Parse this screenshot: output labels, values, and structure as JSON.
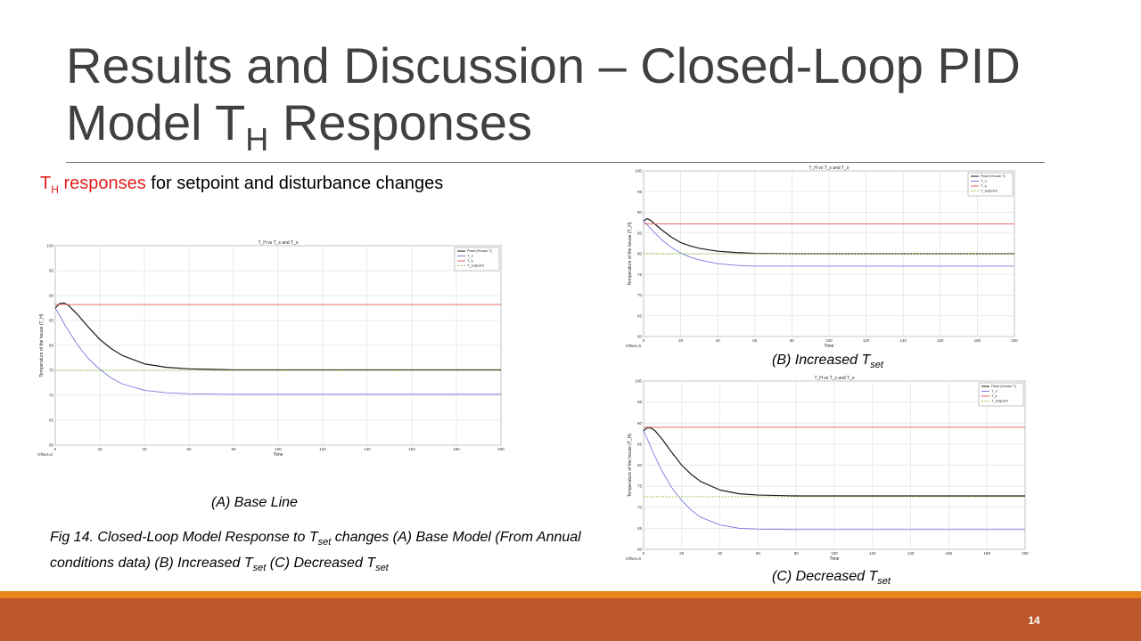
{
  "slide": {
    "title_line1": "Results and Discussion – Closed-Loop PID",
    "title_line2_pre": "Model T",
    "title_line2_sub": "H",
    "title_line2_post": " Responses",
    "subtitle_red_main": "T",
    "subtitle_red_sub": "H",
    "subtitle_red_rest": " responses",
    "subtitle_rest": " for setpoint and disturbance changes",
    "caption_a": "(A) Base Line",
    "caption_b_pre": "(B) Increased T",
    "caption_b_sub": "set",
    "caption_c_pre": "(C) Decreased T",
    "caption_c_sub": "set",
    "fig_caption_p1": "Fig 14. Closed-Loop Model Response to T",
    "fig_caption_s1": "set",
    "fig_caption_p2": " changes (A) Base Model (From Annual conditions data) (B) Increased T",
    "fig_caption_s2": "set",
    "fig_caption_p3": "  (C) Decreased T",
    "fig_caption_s3": "set",
    "page_number": "14"
  },
  "colors": {
    "plant": "#1a1a1a",
    "t_o": "#7a7ae0",
    "t_s": "#e05a5a",
    "setpoint": "#90c040",
    "footer_bar": "#bd582c",
    "footer_accent": "#e8851c"
  },
  "chart_data": [
    {
      "type": "line",
      "title": "T_H vs T_s and T_o",
      "xlabel": "Time",
      "ylabel": "Temperature of the house (T_H)",
      "offset_label": "Offset=0",
      "xlim": [
        0,
        200
      ],
      "ylim": [
        60,
        100
      ],
      "xticks": [
        0,
        20,
        40,
        60,
        80,
        100,
        120,
        140,
        160,
        180,
        200
      ],
      "yticks": [
        60,
        65,
        70,
        75,
        80,
        85,
        90,
        95,
        100
      ],
      "grid": true,
      "legend_position": "top-right",
      "series": [
        {
          "name": "Plant (House T)",
          "x": [
            0,
            2,
            4,
            6,
            10,
            15,
            20,
            25,
            30,
            40,
            50,
            60,
            80,
            100,
            150,
            200
          ],
          "y": [
            87.5,
            88.4,
            88.5,
            88.0,
            86.2,
            83.6,
            81.2,
            79.4,
            78.0,
            76.3,
            75.6,
            75.3,
            75.1,
            75.1,
            75.1,
            75.1
          ]
        },
        {
          "name": "T_o",
          "x": [
            0,
            5,
            10,
            15,
            20,
            25,
            30,
            40,
            50,
            60,
            80,
            100,
            150,
            200
          ],
          "y": [
            87.5,
            83.6,
            80.1,
            77.3,
            75.2,
            73.5,
            72.3,
            71.0,
            70.5,
            70.3,
            70.2,
            70.2,
            70.2,
            70.2
          ]
        },
        {
          "name": "T_s",
          "x": [
            0,
            200
          ],
          "y": [
            88.2,
            88.2
          ]
        },
        {
          "name": "T_setpoint",
          "x": [
            0,
            200
          ],
          "y": [
            75.0,
            75.0
          ]
        }
      ]
    },
    {
      "type": "line",
      "title": "T_H vs T_s and T_o",
      "xlabel": "Time",
      "ylabel": "Temperature of the house (T_H)",
      "offset_label": "Offset=0",
      "xlim": [
        0,
        200
      ],
      "ylim": [
        60,
        100
      ],
      "xticks": [
        0,
        20,
        40,
        60,
        80,
        100,
        120,
        140,
        160,
        180,
        200
      ],
      "yticks": [
        60,
        65,
        70,
        75,
        80,
        85,
        90,
        95,
        100
      ],
      "grid": true,
      "legend_position": "top-right",
      "series": [
        {
          "name": "Plant (House T)",
          "x": [
            0,
            2,
            4,
            6,
            10,
            15,
            20,
            25,
            30,
            40,
            50,
            60,
            80,
            100,
            150,
            200
          ],
          "y": [
            88.0,
            88.5,
            88.0,
            87.2,
            85.7,
            84.0,
            82.7,
            81.9,
            81.3,
            80.6,
            80.3,
            80.1,
            80.0,
            80.0,
            80.0,
            80.0
          ]
        },
        {
          "name": "T_o",
          "x": [
            0,
            5,
            10,
            15,
            20,
            25,
            30,
            40,
            50,
            60,
            80,
            100,
            150,
            200
          ],
          "y": [
            88.0,
            85.5,
            83.3,
            81.5,
            80.2,
            79.2,
            78.5,
            77.6,
            77.2,
            77.0,
            77.0,
            77.0,
            77.0,
            77.0
          ]
        },
        {
          "name": "T_s",
          "x": [
            0,
            200
          ],
          "y": [
            87.2,
            87.2
          ]
        },
        {
          "name": "T_setpoint",
          "x": [
            0,
            200
          ],
          "y": [
            80.0,
            80.0
          ]
        }
      ]
    },
    {
      "type": "line",
      "title": "T_H vs T_s and T_o",
      "xlabel": "Time",
      "ylabel": "Temperature of the house (T_H)",
      "offset_label": "Offset=0",
      "xlim": [
        0,
        200
      ],
      "ylim": [
        60,
        100
      ],
      "xticks": [
        0,
        20,
        40,
        60,
        80,
        100,
        120,
        140,
        160,
        180,
        200
      ],
      "yticks": [
        60,
        65,
        70,
        75,
        80,
        85,
        90,
        95,
        100
      ],
      "grid": true,
      "legend_position": "top-right",
      "series": [
        {
          "name": "Plant (House T)",
          "x": [
            0,
            2,
            4,
            6,
            10,
            15,
            20,
            25,
            30,
            40,
            50,
            60,
            80,
            100,
            150,
            200
          ],
          "y": [
            88.2,
            88.9,
            88.8,
            88.2,
            86.0,
            82.9,
            80.0,
            77.8,
            76.1,
            74.1,
            73.2,
            72.9,
            72.7,
            72.7,
            72.7,
            72.7
          ]
        },
        {
          "name": "T_o",
          "x": [
            0,
            5,
            10,
            15,
            20,
            25,
            30,
            40,
            50,
            60,
            80,
            100,
            150,
            200
          ],
          "y": [
            88.2,
            83.0,
            78.3,
            74.5,
            71.6,
            69.3,
            67.6,
            65.8,
            65.0,
            64.8,
            64.7,
            64.7,
            64.7,
            64.7
          ]
        },
        {
          "name": "T_s",
          "x": [
            0,
            200
          ],
          "y": [
            89.0,
            89.0
          ]
        },
        {
          "name": "T_setpoint",
          "x": [
            0,
            200
          ],
          "y": [
            72.5,
            72.5
          ]
        }
      ]
    }
  ]
}
